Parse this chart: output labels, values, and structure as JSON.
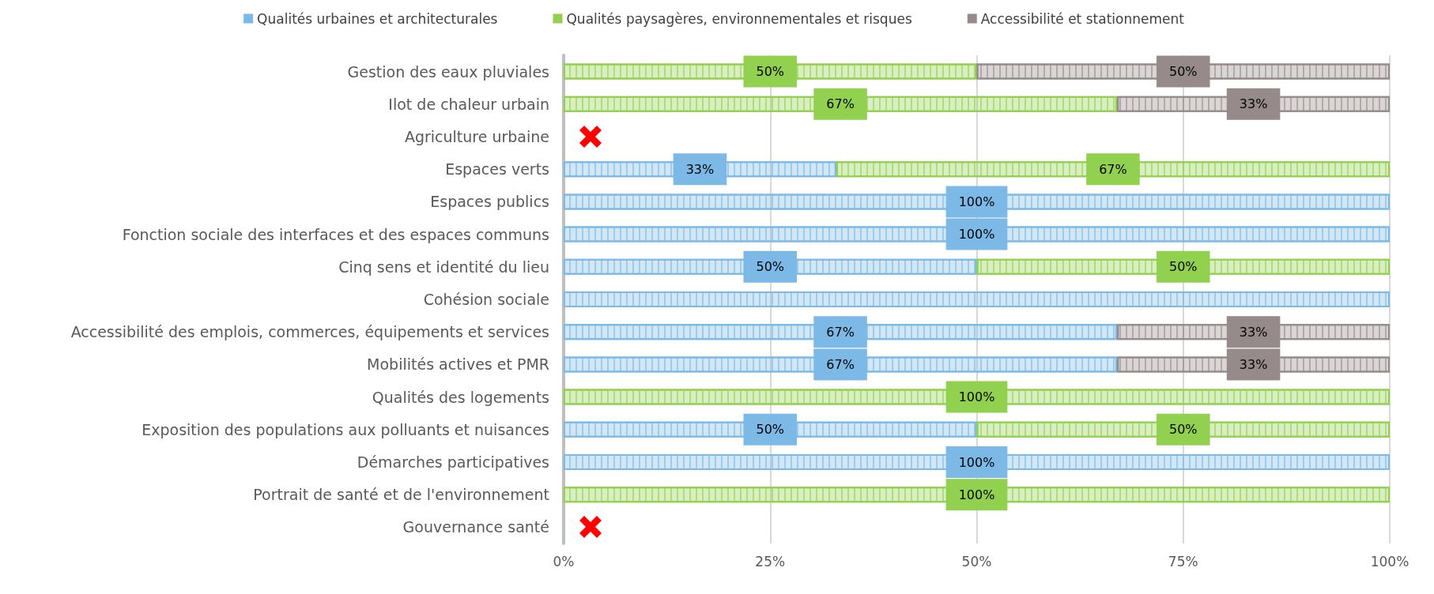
{
  "chart_data": {
    "type": "bar",
    "orientation": "horizontal",
    "stacked": true,
    "categories": [
      "Gestion des eaux pluviales",
      "Ilot de chaleur urbain",
      "Agriculture urbaine",
      "Espaces verts",
      "Espaces publics",
      "Fonction sociale des interfaces et des espaces communs",
      "Cinq sens et identité du lieu",
      "Cohésion sociale",
      "Accessibilité des emplois, commerces, équipements et services",
      "Mobilités actives et PMR",
      "Qualités des logements",
      "Exposition des populations aux polluants et nuisances",
      "Démarches participatives",
      "Portrait de santé et de l'environnement",
      "Gouvernance santé"
    ],
    "series": [
      {
        "name": "Qualités urbaines et architecturales",
        "color": "#7cb9e6",
        "values": [
          null,
          null,
          null,
          33,
          100,
          100,
          50,
          100,
          67,
          67,
          null,
          50,
          100,
          null,
          null
        ],
        "value_labels": [
          null,
          null,
          null,
          "33%",
          "100%",
          "100%",
          "50%",
          null,
          "67%",
          "67%",
          null,
          "50%",
          "100%",
          null,
          null
        ]
      },
      {
        "name": "Qualités paysagères, environnementales et risques",
        "color": "#92d050",
        "values": [
          50,
          67,
          null,
          67,
          null,
          null,
          50,
          null,
          null,
          null,
          100,
          50,
          null,
          100,
          null
        ],
        "value_labels": [
          "50%",
          "67%",
          null,
          "67%",
          null,
          null,
          "50%",
          null,
          null,
          null,
          "100%",
          "50%",
          null,
          "100%",
          null
        ]
      },
      {
        "name": "Accessibilité et stationnement",
        "color": "#968a8a",
        "values": [
          50,
          33,
          null,
          null,
          null,
          null,
          null,
          null,
          33,
          33,
          null,
          null,
          null,
          null,
          null
        ],
        "value_labels": [
          "50%",
          "33%",
          null,
          null,
          null,
          null,
          null,
          null,
          "33%",
          "33%",
          null,
          null,
          null,
          null,
          null
        ]
      }
    ],
    "xlim": [
      0,
      100
    ],
    "xticks": [
      {
        "value": 0,
        "label": "0%"
      },
      {
        "value": 25,
        "label": "25%"
      },
      {
        "value": 50,
        "label": "50%"
      },
      {
        "value": 75,
        "label": "75%"
      },
      {
        "value": 100,
        "label": "100%"
      }
    ],
    "grid": "x",
    "legend": "top"
  }
}
